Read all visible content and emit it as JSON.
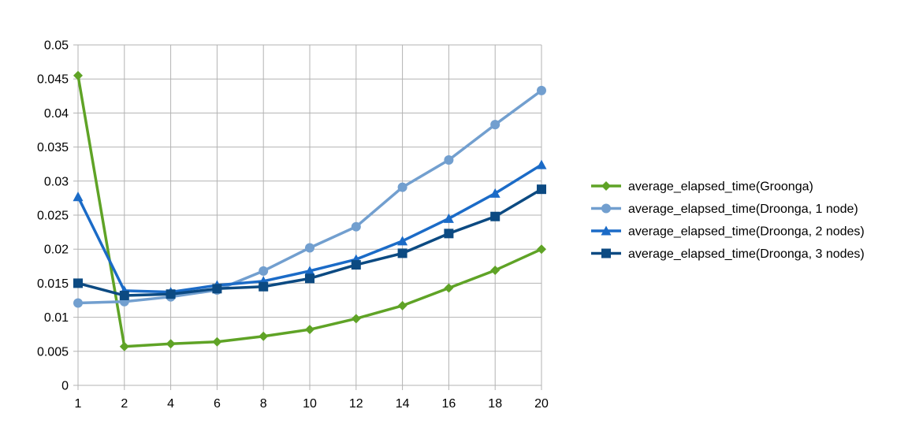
{
  "chart_data": {
    "type": "line",
    "title": "",
    "xlabel": "",
    "ylabel": "",
    "categories": [
      "1",
      "2",
      "4",
      "6",
      "8",
      "10",
      "12",
      "14",
      "16",
      "18",
      "20"
    ],
    "ylim": [
      0,
      0.05
    ],
    "yticks": [
      "0",
      "0.005",
      "0.01",
      "0.015",
      "0.02",
      "0.025",
      "0.03",
      "0.035",
      "0.04",
      "0.045",
      "0.05"
    ],
    "grid": true,
    "legend": "right",
    "series": [
      {
        "name": "average_elapsed_time(Groonga)",
        "color": "#5fa326",
        "marker": "diamond",
        "values": [
          0.0455,
          0.0057,
          0.0061,
          0.0064,
          0.0072,
          0.0082,
          0.0098,
          0.0117,
          0.0143,
          0.0169,
          0.02
        ]
      },
      {
        "name": "average_elapsed_time(Droonga, 1 node)",
        "color": "#729fcf",
        "marker": "circle",
        "values": [
          0.0121,
          0.0123,
          0.013,
          0.014,
          0.0168,
          0.0202,
          0.0233,
          0.0291,
          0.0331,
          0.0383,
          0.0433
        ]
      },
      {
        "name": "average_elapsed_time(Droonga, 2 nodes)",
        "color": "#1b6bc7",
        "marker": "triangle",
        "values": [
          0.0277,
          0.0139,
          0.0137,
          0.0147,
          0.0153,
          0.0168,
          0.0185,
          0.0212,
          0.0245,
          0.0282,
          0.0324
        ]
      },
      {
        "name": "average_elapsed_time(Droonga, 3 nodes)",
        "color": "#0c4a82",
        "marker": "square",
        "values": [
          0.015,
          0.0132,
          0.0134,
          0.0142,
          0.0145,
          0.0157,
          0.0177,
          0.0194,
          0.0223,
          0.0248,
          0.0288
        ]
      }
    ]
  }
}
